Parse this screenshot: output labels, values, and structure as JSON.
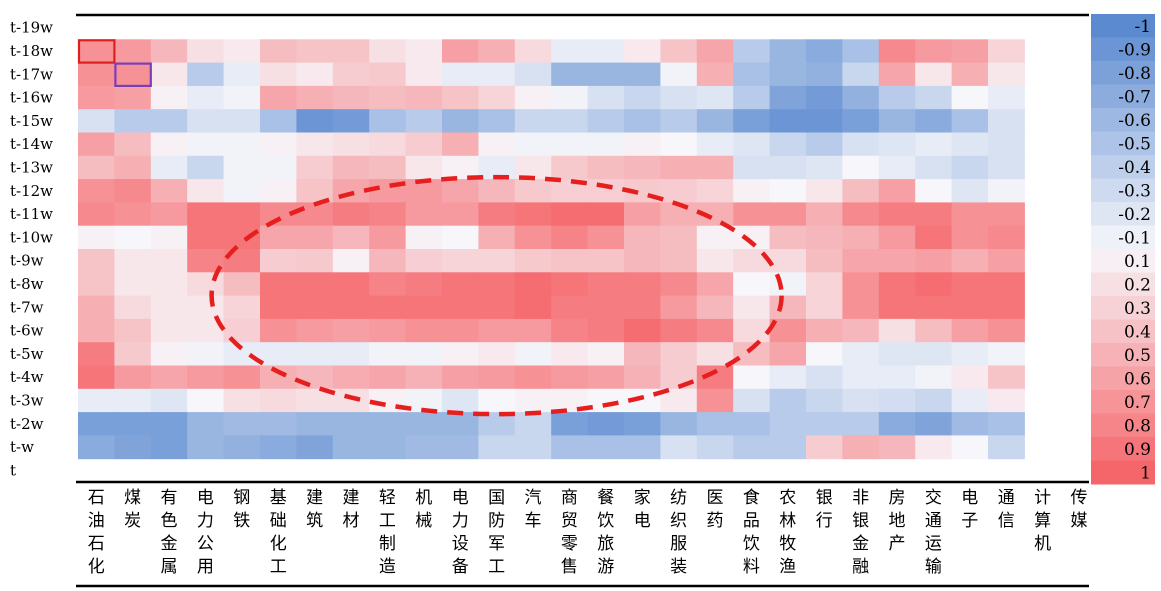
{
  "chart_data": {
    "type": "heatmap",
    "rows": [
      "t-19w",
      "t-18w",
      "t-17w",
      "t-16w",
      "t-15w",
      "t-14w",
      "t-13w",
      "t-12w",
      "t-11w",
      "t-10w",
      "t-9w",
      "t-8w",
      "t-7w",
      "t-6w",
      "t-5w",
      "t-4w",
      "t-3w",
      "t-2w",
      "t-w",
      "t"
    ],
    "columns": [
      "石油石化",
      "煤炭",
      "有色金属",
      "电力公用",
      "钢铁",
      "基础化工",
      "建筑",
      "建材",
      "轻工制造",
      "机械",
      "电力设备",
      "国防军工",
      "汽车",
      "商贸零售",
      "餐饮旅游",
      "家电",
      "纺织服装",
      "医药",
      "食品饮料",
      "农林牧渔",
      "银行",
      "非银金融",
      "房地产",
      "交通运输",
      "电子",
      "通信",
      "计算机",
      "传媒"
    ],
    "values": [
      [
        null,
        null,
        null,
        null,
        null,
        null,
        null,
        null,
        null,
        null,
        null,
        null,
        null,
        null,
        null,
        null,
        null,
        null,
        null,
        null,
        null,
        null,
        null,
        null,
        null,
        null,
        null,
        null
      ],
      [
        0.85,
        0.82,
        0.72,
        0.58,
        0.55,
        0.7,
        0.68,
        0.68,
        0.58,
        0.55,
        0.8,
        0.75,
        0.6,
        0.45,
        0.45,
        0.55,
        0.68,
        0.78,
        0.3,
        0.2,
        0.15,
        0.25,
        0.88,
        0.82,
        0.8,
        0.62,
        null,
        null
      ],
      [
        0.85,
        0.85,
        0.56,
        0.3,
        0.45,
        0.58,
        0.55,
        0.65,
        0.66,
        0.55,
        0.45,
        0.45,
        0.4,
        0.2,
        0.2,
        0.2,
        0.48,
        0.75,
        0.25,
        0.2,
        0.18,
        0.35,
        0.78,
        0.56,
        0.75,
        0.56,
        null,
        null
      ],
      [
        0.82,
        0.8,
        0.52,
        0.45,
        0.48,
        0.78,
        0.75,
        0.72,
        0.7,
        0.72,
        0.68,
        0.62,
        0.52,
        0.48,
        0.4,
        0.35,
        0.4,
        0.42,
        0.3,
        0.12,
        0.08,
        0.18,
        0.3,
        0.35,
        0.5,
        0.45,
        null,
        null
      ],
      [
        0.4,
        0.3,
        0.3,
        0.4,
        0.4,
        0.25,
        0.05,
        0.08,
        0.25,
        0.3,
        0.2,
        0.25,
        0.35,
        0.35,
        0.3,
        0.25,
        0.3,
        0.2,
        0.1,
        0.05,
        0.05,
        0.1,
        0.2,
        0.15,
        0.25,
        0.4,
        null,
        null
      ],
      [
        0.8,
        0.7,
        0.52,
        0.48,
        0.48,
        0.52,
        0.56,
        0.58,
        0.6,
        0.65,
        0.75,
        0.52,
        0.48,
        0.48,
        0.48,
        0.52,
        0.5,
        0.45,
        0.42,
        0.35,
        0.3,
        0.4,
        0.42,
        0.45,
        0.42,
        0.4,
        null,
        null
      ],
      [
        0.7,
        0.75,
        0.45,
        0.35,
        0.48,
        0.48,
        0.65,
        0.72,
        0.7,
        0.56,
        0.52,
        0.45,
        0.56,
        0.66,
        0.7,
        0.72,
        0.75,
        0.75,
        0.4,
        0.4,
        0.42,
        0.5,
        0.45,
        0.4,
        0.35,
        0.4,
        null,
        null
      ],
      [
        0.85,
        0.88,
        0.75,
        0.56,
        0.48,
        0.52,
        0.68,
        0.78,
        0.82,
        0.82,
        0.78,
        0.72,
        0.66,
        0.64,
        0.64,
        0.66,
        0.65,
        0.62,
        0.52,
        0.5,
        0.56,
        0.7,
        0.8,
        0.5,
        0.42,
        0.48,
        null,
        null
      ],
      [
        0.88,
        0.85,
        0.82,
        0.95,
        0.95,
        0.88,
        0.88,
        0.92,
        0.9,
        0.82,
        0.82,
        0.92,
        0.95,
        0.98,
        0.98,
        0.8,
        0.75,
        0.75,
        0.85,
        0.85,
        0.75,
        0.88,
        0.92,
        0.92,
        0.85,
        0.85,
        null,
        null
      ],
      [
        0.52,
        0.5,
        0.52,
        0.95,
        0.95,
        0.78,
        0.78,
        0.72,
        0.82,
        0.52,
        0.5,
        0.75,
        0.85,
        0.9,
        0.85,
        0.72,
        0.7,
        0.52,
        0.52,
        0.7,
        0.72,
        0.75,
        0.82,
        0.95,
        0.85,
        0.88,
        null,
        null
      ],
      [
        0.68,
        0.56,
        0.56,
        0.9,
        0.92,
        0.65,
        0.66,
        0.52,
        0.72,
        0.64,
        0.62,
        0.62,
        0.66,
        0.68,
        0.68,
        0.72,
        0.7,
        0.56,
        0.6,
        0.6,
        0.7,
        0.78,
        0.78,
        0.8,
        0.75,
        0.8,
        null,
        null
      ],
      [
        0.68,
        0.56,
        0.56,
        0.6,
        0.7,
        0.95,
        0.95,
        0.95,
        0.9,
        0.92,
        0.95,
        0.95,
        0.98,
        0.95,
        0.92,
        0.92,
        0.88,
        0.78,
        0.5,
        0.48,
        0.62,
        0.85,
        0.95,
        0.98,
        0.95,
        0.95,
        null,
        null
      ],
      [
        0.75,
        0.6,
        0.56,
        0.56,
        0.62,
        0.95,
        0.95,
        0.95,
        0.95,
        0.95,
        0.95,
        0.95,
        0.98,
        0.92,
        0.92,
        0.92,
        0.82,
        0.72,
        0.56,
        0.72,
        0.62,
        0.85,
        0.95,
        0.95,
        0.95,
        0.95,
        null,
        null
      ],
      [
        0.75,
        0.68,
        0.56,
        0.56,
        0.64,
        0.85,
        0.82,
        0.8,
        0.82,
        0.85,
        0.85,
        0.82,
        0.82,
        0.9,
        0.92,
        0.98,
        0.92,
        0.88,
        0.6,
        0.85,
        0.75,
        0.72,
        0.58,
        0.7,
        0.8,
        0.85,
        null,
        null
      ],
      [
        0.92,
        0.66,
        0.52,
        0.48,
        0.45,
        0.45,
        0.45,
        0.45,
        0.48,
        0.48,
        0.52,
        0.55,
        0.48,
        0.55,
        0.52,
        0.72,
        0.65,
        0.58,
        0.7,
        0.78,
        0.5,
        0.45,
        0.42,
        0.42,
        0.45,
        0.48,
        null,
        null
      ],
      [
        0.95,
        0.82,
        0.78,
        0.82,
        0.85,
        0.75,
        0.72,
        0.76,
        0.78,
        0.74,
        0.8,
        0.82,
        0.85,
        0.82,
        0.8,
        0.74,
        0.65,
        0.92,
        0.5,
        0.45,
        0.4,
        0.45,
        0.45,
        0.48,
        0.55,
        0.68,
        null,
        null
      ],
      [
        0.45,
        0.45,
        0.42,
        0.5,
        0.58,
        0.6,
        0.58,
        0.58,
        0.52,
        0.48,
        0.42,
        0.5,
        0.52,
        0.52,
        0.5,
        0.5,
        0.55,
        0.85,
        0.4,
        0.3,
        0.35,
        0.4,
        0.38,
        0.35,
        0.45,
        0.55,
        null,
        null
      ],
      [
        0.1,
        0.1,
        0.1,
        0.2,
        0.22,
        0.22,
        0.2,
        0.2,
        0.2,
        0.2,
        0.2,
        0.3,
        0.35,
        0.1,
        0.08,
        0.1,
        0.2,
        0.25,
        0.25,
        0.3,
        0.3,
        0.3,
        0.15,
        0.12,
        0.22,
        0.25,
        null,
        null
      ],
      [
        0.15,
        0.12,
        0.1,
        0.2,
        0.18,
        0.15,
        0.12,
        0.2,
        0.2,
        0.22,
        0.22,
        0.35,
        0.35,
        0.25,
        0.25,
        0.25,
        0.4,
        0.35,
        0.3,
        0.3,
        0.65,
        0.75,
        0.72,
        0.55,
        0.5,
        0.35,
        null,
        null
      ],
      [
        null,
        null,
        null,
        null,
        null,
        null,
        null,
        null,
        null,
        null,
        null,
        null,
        null,
        null,
        null,
        null,
        null,
        null,
        null,
        null,
        null,
        null,
        null,
        null,
        null,
        null,
        null,
        null
      ]
    ],
    "colorbar": {
      "ticks": [
        "-1",
        "-0.9",
        "-0.8",
        "-0.7",
        "-0.6",
        "-0.5",
        "-0.4",
        "-0.3",
        "-0.2",
        "-0.1",
        "0.1",
        "0.2",
        "0.3",
        "0.4",
        "0.5",
        "0.6",
        "0.7",
        "0.8",
        "0.9",
        "1"
      ],
      "low_color": "#5b8ad0",
      "mid_color": "#f7f7fb",
      "high_color": "#f5666b"
    },
    "annotations": [
      {
        "shape": "rectangle",
        "row": "t-18w",
        "column": "石油石化",
        "color": "#e02020"
      },
      {
        "shape": "rectangle",
        "row": "t-17w",
        "column": "煤炭",
        "color": "#7b3fb5"
      },
      {
        "shape": "ellipse",
        "style": "dashed",
        "color": "#e61e1e",
        "rows": [
          "t-12w",
          "t-3w"
        ],
        "columns": [
          "钢铁",
          "食品饮料"
        ]
      }
    ]
  }
}
